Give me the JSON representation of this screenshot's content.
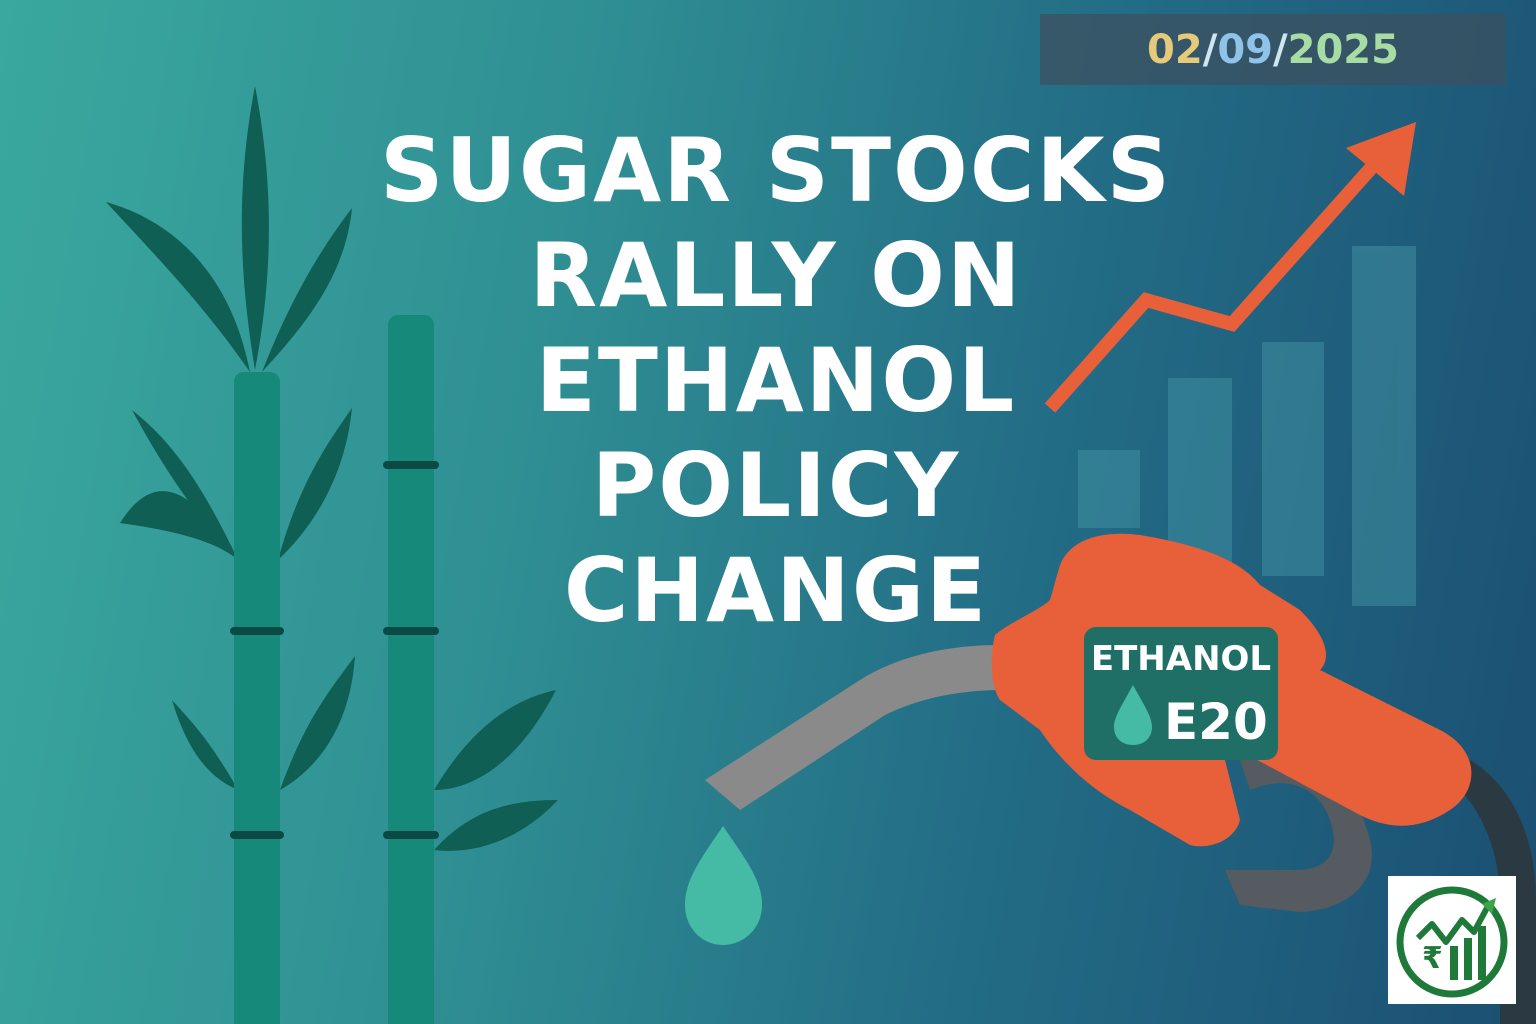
{
  "date": {
    "day": "02",
    "month": "09",
    "year": "2025",
    "separator": "/"
  },
  "headline": {
    "lines": [
      "SUGAR STOCKS",
      "RALLY ON",
      "ETHANOL",
      "POLICY",
      "CHANGE"
    ]
  },
  "badge": {
    "title": "ETHANOL",
    "code": "E20"
  },
  "logo": {
    "icon": "rupee-growth-chart-logo"
  },
  "colors": {
    "accent_orange": "#e8603a",
    "leaf_dark": "#0f5f55",
    "stalk": "#16897a",
    "drop": "#45bba5",
    "nozzle_grey": "#8a8a8a"
  },
  "icons": [
    "sugarcane-icon",
    "trend-arrow-icon",
    "bar-chart-icon",
    "fuel-nozzle-icon",
    "fuel-drop-icon"
  ]
}
